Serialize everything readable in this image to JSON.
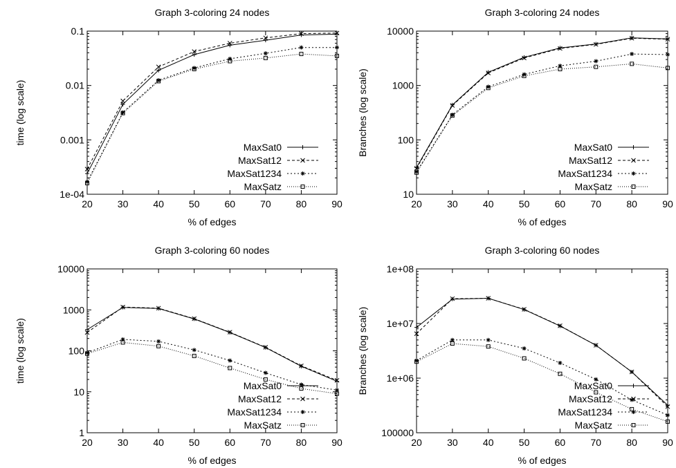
{
  "chart_data": [
    {
      "type": "line",
      "title": "Graph 3-coloring 24 nodes",
      "xlabel": "% of edges",
      "ylabel": "time (log scale)",
      "yscale": "log",
      "xlim": [
        20,
        90
      ],
      "ylim": [
        0.0001,
        0.1
      ],
      "xticks": [
        20,
        30,
        40,
        50,
        60,
        70,
        80,
        90
      ],
      "yticks": [
        0.0001,
        0.001,
        0.01,
        0.1
      ],
      "ytick_labels": [
        "1e-04",
        "0.001",
        "0.01",
        "0.1"
      ],
      "grid": false,
      "legend_position": "bottom-right",
      "x": [
        20,
        30,
        40,
        50,
        60,
        70,
        80,
        90
      ],
      "series": [
        {
          "name": "MaxSat0",
          "values": [
            0.00024,
            0.0045,
            0.019,
            0.037,
            0.055,
            0.068,
            0.085,
            0.088
          ]
        },
        {
          "name": "MaxSat12",
          "values": [
            0.00029,
            0.0052,
            0.022,
            0.042,
            0.06,
            0.075,
            0.09,
            0.092
          ]
        },
        {
          "name": "MaxSat1234",
          "values": [
            0.00017,
            0.0032,
            0.0125,
            0.021,
            0.031,
            0.039,
            0.05,
            0.05
          ]
        },
        {
          "name": "MaxSatz",
          "values": [
            0.00016,
            0.0031,
            0.012,
            0.02,
            0.028,
            0.032,
            0.038,
            0.035
          ]
        }
      ]
    },
    {
      "type": "line",
      "title": "Graph 3-coloring 24 nodes",
      "xlabel": "% of edges",
      "ylabel": "Branches (log scale)",
      "yscale": "log",
      "xlim": [
        20,
        90
      ],
      "ylim": [
        10,
        10000
      ],
      "xticks": [
        20,
        30,
        40,
        50,
        60,
        70,
        80,
        90
      ],
      "yticks": [
        10,
        100,
        1000,
        10000
      ],
      "ytick_labels": [
        "10",
        "100",
        "1000",
        "10000"
      ],
      "grid": false,
      "legend_position": "bottom-right",
      "x": [
        20,
        30,
        40,
        50,
        60,
        70,
        80,
        90
      ],
      "series": [
        {
          "name": "MaxSat0",
          "values": [
            31,
            440,
            1750,
            3300,
            4900,
            5800,
            7500,
            7200
          ]
        },
        {
          "name": "MaxSat12",
          "values": [
            30,
            430,
            1700,
            3200,
            4800,
            5700,
            7400,
            7100
          ]
        },
        {
          "name": "MaxSat1234",
          "values": [
            26,
            290,
            950,
            1600,
            2300,
            2800,
            3800,
            3700
          ]
        },
        {
          "name": "MaxSatz",
          "values": [
            25,
            280,
            900,
            1500,
            2000,
            2200,
            2500,
            2100
          ]
        }
      ]
    },
    {
      "type": "line",
      "title": "Graph 3-coloring 60 nodes",
      "xlabel": "% of edges",
      "ylabel": "time (log scale)",
      "yscale": "log",
      "xlim": [
        20,
        90
      ],
      "ylim": [
        1,
        10000
      ],
      "xticks": [
        20,
        30,
        40,
        50,
        60,
        70,
        80,
        90
      ],
      "yticks": [
        1,
        10,
        100,
        1000,
        10000
      ],
      "ytick_labels": [
        "1",
        "10",
        "100",
        "1000",
        "10000"
      ],
      "grid": false,
      "legend_position": "bottom-right",
      "x": [
        20,
        30,
        40,
        50,
        60,
        70,
        80,
        90
      ],
      "series": [
        {
          "name": "MaxSat0",
          "values": [
            330,
            1150,
            1080,
            600,
            280,
            120,
            42,
            18
          ]
        },
        {
          "name": "MaxSat12",
          "values": [
            280,
            1170,
            1100,
            610,
            285,
            122,
            43,
            19
          ]
        },
        {
          "name": "MaxSat1234",
          "values": [
            90,
            190,
            170,
            105,
            58,
            29,
            15,
            11
          ]
        },
        {
          "name": "MaxSatz",
          "values": [
            85,
            160,
            130,
            75,
            38,
            20,
            12,
            9
          ]
        }
      ]
    },
    {
      "type": "line",
      "title": "Graph 3-coloring 60 nodes",
      "xlabel": "% of edges",
      "ylabel": "Branches (log scale)",
      "yscale": "log",
      "xlim": [
        20,
        90
      ],
      "ylim": [
        100000,
        100000000
      ],
      "xticks": [
        20,
        30,
        40,
        50,
        60,
        70,
        80,
        90
      ],
      "yticks": [
        100000,
        1000000,
        10000000,
        100000000
      ],
      "ytick_labels": [
        "100000",
        "1e+06",
        "1e+07",
        "1e+08"
      ],
      "grid": false,
      "legend_position": "bottom-right",
      "x": [
        20,
        30,
        40,
        50,
        60,
        70,
        80,
        90
      ],
      "series": [
        {
          "name": "MaxSat0",
          "values": [
            8500000,
            28000000,
            29000000,
            18000000,
            9000000,
            4000000,
            1300000,
            320000
          ]
        },
        {
          "name": "MaxSat12",
          "values": [
            6500000,
            28500000,
            29000000,
            18200000,
            9100000,
            4000000,
            1300000,
            300000
          ]
        },
        {
          "name": "MaxSat1234",
          "values": [
            2100000,
            5000000,
            5000000,
            3500000,
            1900000,
            950000,
            400000,
            210000
          ]
        },
        {
          "name": "MaxSatz",
          "values": [
            2000000,
            4300000,
            3800000,
            2300000,
            1200000,
            550000,
            270000,
            160000
          ]
        }
      ]
    }
  ]
}
